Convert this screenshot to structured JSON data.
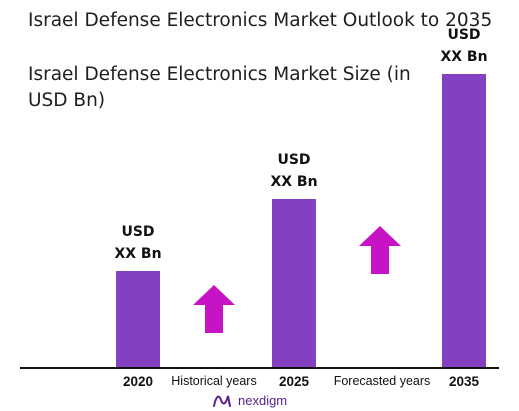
{
  "chart_data": {
    "type": "bar",
    "title": "Israel Defense Electronics Market Outlook to 2035",
    "subtitle": "Israel Defense Electronics Market Size (in USD Bn)",
    "categories": [
      "2020",
      "2025",
      "2035"
    ],
    "values": [
      1.0,
      1.75,
      3.05
    ],
    "data_labels": [
      "USD\nXX Bn",
      "USD\nXX Bn",
      "USD\nXX Bn"
    ],
    "period_labels": [
      "Historical years",
      "Forecasted years"
    ],
    "bar_color": "#8540c2",
    "arrow_color": "#c613c6",
    "grid": false,
    "ylim": [
      0,
      3.2
    ]
  },
  "logo": {
    "text": "nexdigm",
    "icon": "nexdigm-logo-icon"
  }
}
